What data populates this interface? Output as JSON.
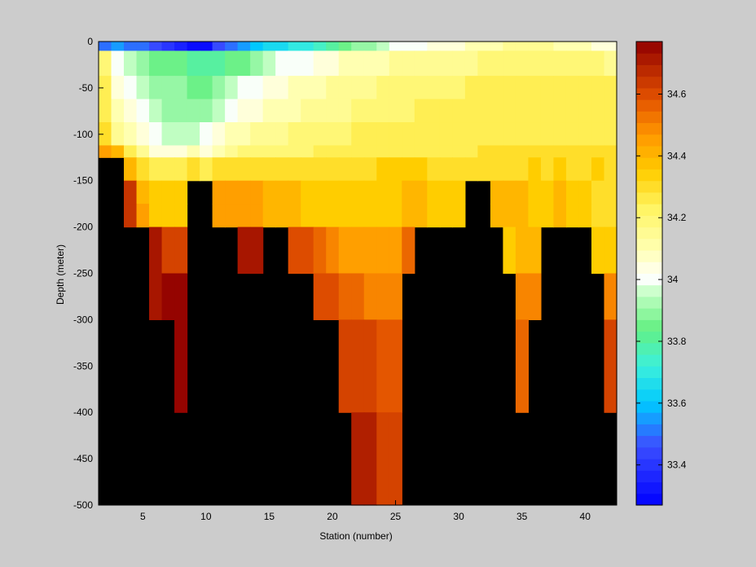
{
  "chart_data": {
    "type": "heatmap",
    "title": "",
    "xlabel": "Station (number)",
    "ylabel": "Depth (meter)",
    "xlim": [
      1.5,
      42.5
    ],
    "ylim": [
      -500,
      0
    ],
    "xticks": [
      5,
      10,
      15,
      20,
      25,
      30,
      35,
      40
    ],
    "yticks": [
      0,
      -50,
      -100,
      -150,
      -200,
      -250,
      -300,
      -350,
      -400,
      -450,
      -500
    ],
    "colorbar": {
      "range": [
        33.27,
        34.77
      ],
      "ticks": [
        33.4,
        33.6,
        33.8,
        34,
        34.2,
        34.4,
        34.6
      ],
      "tick_labels": [
        "33.4",
        "33.6",
        "33.8",
        "34",
        "34.2",
        "34.4",
        "34.6"
      ],
      "colormap": "jet-like (blue-cyan-green-white-yellow-orange-red)"
    },
    "background_color": "#000000",
    "depth_levels": [
      -5,
      -25,
      -50,
      -75,
      -100,
      -125,
      -150,
      -175,
      -200,
      -250,
      -300,
      -400,
      -500
    ],
    "stations": [
      2,
      3,
      4,
      5,
      6,
      7,
      8,
      9,
      10,
      11,
      12,
      13,
      14,
      15,
      16,
      17,
      18,
      19,
      20,
      21,
      22,
      23,
      24,
      25,
      26,
      27,
      28,
      29,
      30,
      31,
      32,
      33,
      34,
      35,
      36,
      37,
      38,
      39,
      40,
      41,
      42
    ],
    "salinity_rows": [
      {
        "depth_top": 0,
        "depth_bottom": -10,
        "values": [
          33.5,
          33.55,
          33.5,
          33.5,
          33.45,
          33.4,
          33.35,
          33.3,
          33.3,
          33.45,
          33.5,
          33.55,
          33.6,
          33.65,
          33.65,
          33.7,
          33.7,
          33.75,
          33.8,
          33.85,
          33.9,
          33.9,
          33.95,
          34.0,
          34.0,
          34.0,
          34.05,
          34.05,
          34.05,
          34.1,
          34.1,
          34.1,
          34.15,
          34.15,
          34.15,
          34.15,
          34.1,
          34.1,
          34.1,
          34.05,
          34.05
        ]
      },
      {
        "depth_top": -10,
        "depth_bottom": -37,
        "values": [
          34.2,
          34.0,
          33.95,
          33.9,
          33.85,
          33.85,
          33.85,
          33.8,
          33.8,
          33.8,
          33.85,
          33.85,
          33.9,
          33.95,
          34.0,
          34.0,
          34.0,
          34.05,
          34.05,
          34.1,
          34.1,
          34.1,
          34.1,
          34.15,
          34.15,
          34.15,
          34.15,
          34.15,
          34.15,
          34.15,
          34.2,
          34.2,
          34.2,
          34.2,
          34.2,
          34.2,
          34.2,
          34.2,
          34.2,
          34.2,
          34.15
        ]
      },
      {
        "depth_top": -37,
        "depth_bottom": -62,
        "values": [
          34.25,
          34.05,
          34.0,
          33.95,
          33.9,
          33.9,
          33.9,
          33.85,
          33.85,
          33.9,
          33.95,
          34.0,
          34.0,
          34.05,
          34.05,
          34.1,
          34.1,
          34.1,
          34.15,
          34.15,
          34.15,
          34.15,
          34.2,
          34.2,
          34.2,
          34.2,
          34.2,
          34.2,
          34.2,
          34.25,
          34.25,
          34.25,
          34.25,
          34.25,
          34.25,
          34.25,
          34.25,
          34.25,
          34.25,
          34.25,
          34.25
        ]
      },
      {
        "depth_top": -62,
        "depth_bottom": -87,
        "values": [
          34.25,
          34.1,
          34.05,
          34.0,
          33.95,
          33.9,
          33.9,
          33.9,
          33.9,
          33.95,
          34.0,
          34.05,
          34.05,
          34.1,
          34.1,
          34.1,
          34.15,
          34.15,
          34.15,
          34.15,
          34.2,
          34.2,
          34.2,
          34.2,
          34.2,
          34.25,
          34.25,
          34.25,
          34.25,
          34.25,
          34.25,
          34.25,
          34.25,
          34.25,
          34.25,
          34.25,
          34.25,
          34.25,
          34.25,
          34.25,
          34.25
        ]
      },
      {
        "depth_top": -87,
        "depth_bottom": -112,
        "values": [
          34.3,
          34.15,
          34.1,
          34.05,
          34.0,
          33.95,
          33.95,
          33.95,
          34.0,
          34.05,
          34.1,
          34.1,
          34.15,
          34.15,
          34.15,
          34.2,
          34.2,
          34.2,
          34.2,
          34.2,
          34.25,
          34.25,
          34.25,
          34.25,
          34.25,
          34.25,
          34.25,
          34.25,
          34.25,
          34.25,
          34.25,
          34.25,
          34.25,
          34.25,
          34.25,
          34.25,
          34.25,
          34.25,
          34.25,
          34.25,
          34.25
        ]
      },
      {
        "depth_top": -112,
        "depth_bottom": -125,
        "values": [
          34.45,
          34.4,
          34.25,
          34.15,
          34.05,
          34.05,
          34.05,
          34.1,
          34.05,
          34.1,
          34.15,
          34.2,
          34.2,
          34.2,
          34.2,
          34.2,
          34.2,
          34.25,
          34.25,
          34.25,
          34.25,
          34.25,
          34.25,
          34.25,
          34.25,
          34.25,
          34.25,
          34.25,
          34.25,
          34.25,
          34.3,
          34.3,
          34.3,
          34.3,
          34.3,
          34.3,
          34.3,
          34.3,
          34.3,
          34.3,
          34.3
        ]
      },
      {
        "depth_top": -125,
        "depth_bottom": -150,
        "values": [
          null,
          null,
          34.4,
          34.3,
          34.25,
          34.25,
          34.25,
          34.3,
          34.25,
          34.3,
          34.3,
          34.3,
          34.3,
          34.3,
          34.3,
          34.3,
          34.3,
          34.3,
          34.3,
          34.3,
          34.3,
          34.3,
          34.35,
          34.35,
          34.35,
          34.35,
          34.3,
          34.3,
          34.3,
          34.3,
          34.3,
          34.3,
          34.3,
          34.3,
          34.35,
          34.3,
          34.35,
          34.3,
          34.3,
          34.35,
          34.3
        ]
      },
      {
        "depth_top": -150,
        "depth_bottom": -175,
        "values": [
          null,
          null,
          34.65,
          34.4,
          34.35,
          34.35,
          34.35,
          null,
          null,
          34.45,
          34.45,
          34.45,
          34.45,
          34.4,
          34.4,
          34.4,
          34.35,
          34.35,
          34.35,
          34.35,
          34.35,
          34.35,
          34.35,
          34.35,
          34.4,
          34.4,
          34.35,
          34.35,
          34.35,
          null,
          null,
          34.4,
          34.4,
          34.4,
          34.35,
          34.35,
          34.4,
          34.35,
          34.35,
          34.3,
          34.3
        ]
      },
      {
        "depth_top": -175,
        "depth_bottom": -200,
        "values": [
          null,
          null,
          34.65,
          34.45,
          34.35,
          34.35,
          34.35,
          null,
          null,
          34.45,
          34.45,
          34.45,
          34.45,
          34.4,
          34.4,
          34.4,
          34.35,
          34.35,
          34.35,
          34.35,
          34.35,
          34.35,
          34.35,
          34.35,
          34.4,
          34.4,
          34.35,
          34.35,
          34.35,
          null,
          null,
          34.4,
          34.4,
          34.4,
          34.35,
          34.35,
          34.4,
          34.35,
          34.35,
          34.3,
          34.3
        ]
      },
      {
        "depth_top": -200,
        "depth_bottom": -250,
        "values": [
          null,
          null,
          null,
          null,
          34.72,
          34.62,
          34.62,
          null,
          null,
          null,
          null,
          34.72,
          34.72,
          null,
          null,
          34.6,
          34.6,
          34.55,
          34.5,
          34.45,
          34.45,
          34.45,
          34.45,
          34.45,
          34.55,
          null,
          null,
          null,
          null,
          null,
          null,
          null,
          34.35,
          34.4,
          34.4,
          null,
          null,
          null,
          null,
          34.35,
          34.35
        ]
      },
      {
        "depth_top": -250,
        "depth_bottom": -300,
        "values": [
          null,
          null,
          null,
          null,
          34.72,
          34.76,
          34.76,
          null,
          null,
          null,
          null,
          null,
          null,
          null,
          null,
          null,
          null,
          34.6,
          34.6,
          34.55,
          34.55,
          34.5,
          34.5,
          34.5,
          null,
          null,
          null,
          null,
          null,
          null,
          null,
          null,
          null,
          34.5,
          34.5,
          null,
          null,
          null,
          null,
          null,
          34.5
        ]
      },
      {
        "depth_top": -300,
        "depth_bottom": -400,
        "values": [
          null,
          null,
          null,
          null,
          null,
          null,
          34.76,
          null,
          null,
          null,
          null,
          null,
          null,
          null,
          null,
          null,
          null,
          null,
          null,
          34.62,
          34.62,
          34.62,
          34.58,
          34.58,
          null,
          null,
          null,
          null,
          null,
          null,
          null,
          null,
          null,
          34.55,
          null,
          null,
          null,
          null,
          null,
          null,
          34.62
        ]
      },
      {
        "depth_top": -400,
        "depth_bottom": -500,
        "values": [
          null,
          null,
          null,
          null,
          null,
          null,
          null,
          null,
          null,
          null,
          null,
          null,
          null,
          null,
          null,
          null,
          null,
          null,
          null,
          null,
          34.7,
          34.7,
          34.62,
          34.62,
          null,
          null,
          null,
          null,
          null,
          null,
          null,
          null,
          null,
          null,
          null,
          null,
          null,
          null,
          null,
          null,
          null
        ]
      }
    ]
  }
}
